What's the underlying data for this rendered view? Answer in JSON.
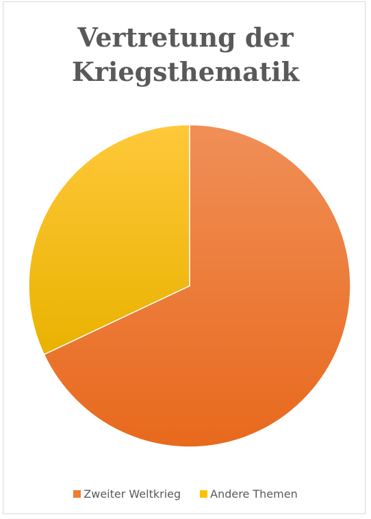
{
  "chart_data": {
    "type": "pie",
    "title": "Vertretung der Kriegsthematik",
    "title_lines": [
      "Vertretung der",
      "Kriegsthematik"
    ],
    "series": [
      {
        "categories": [
          "Zweiter Weltkrieg",
          "Andere Themen"
        ],
        "values": [
          68,
          32
        ]
      }
    ],
    "legend": {
      "position": "bottom",
      "entries": [
        "Zweiter Weltkrieg",
        "Andere Themen"
      ]
    },
    "colors": [
      "#ED7D31",
      "#FFC000"
    ]
  }
}
